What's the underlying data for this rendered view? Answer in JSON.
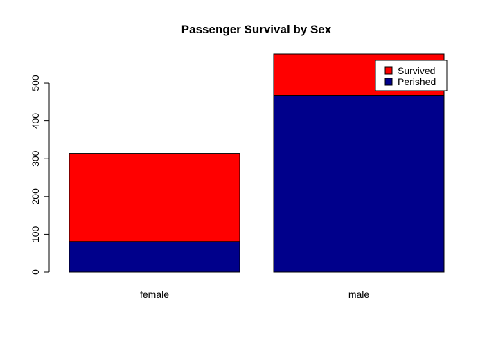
{
  "chart_data": {
    "type": "bar",
    "stacked": true,
    "title": "Passenger Survival by Sex",
    "xlabel": "",
    "ylabel": "",
    "categories": [
      "female",
      "male"
    ],
    "series": [
      {
        "name": "Perished",
        "color": "#00008B",
        "values": [
          81,
          468
        ]
      },
      {
        "name": "Survived",
        "color": "#FF0000",
        "values": [
          233,
          109
        ]
      }
    ],
    "ylim": [
      0,
      577
    ],
    "yticks": [
      0,
      100,
      200,
      300,
      400,
      500
    ],
    "legend": {
      "position": "top-right",
      "entries": [
        {
          "label": "Survived",
          "color": "#FF0000"
        },
        {
          "label": "Perished",
          "color": "#00008B"
        }
      ]
    }
  }
}
